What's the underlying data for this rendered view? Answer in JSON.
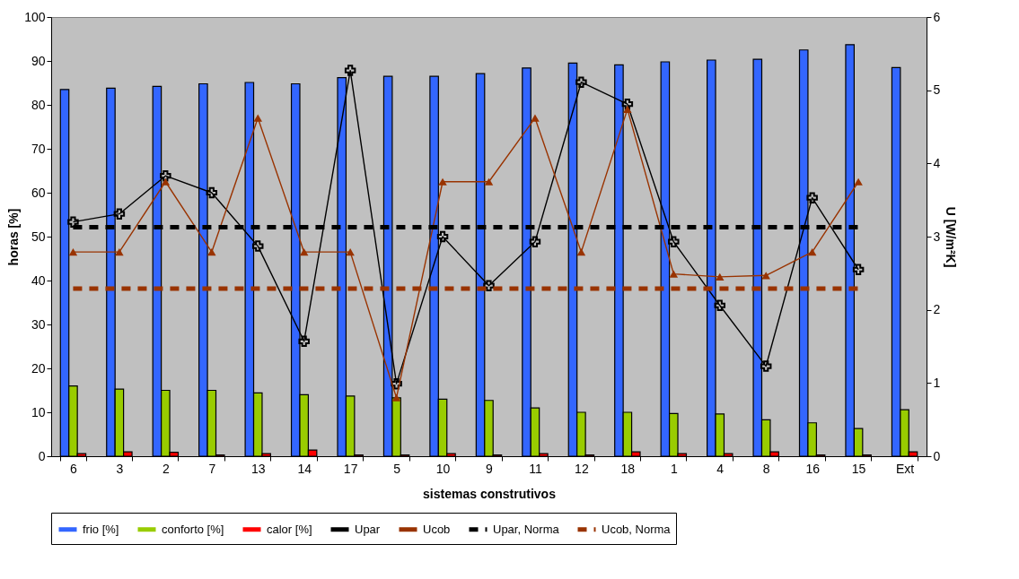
{
  "chart_data": {
    "type": "bar",
    "xlabel": "sistemas construtivos",
    "ylabel": "horas [%]",
    "y2label": "U [W/m²K]",
    "categories": [
      "6",
      "3",
      "2",
      "7",
      "13",
      "14",
      "17",
      "5",
      "10",
      "9",
      "11",
      "12",
      "18",
      "1",
      "4",
      "8",
      "16",
      "15",
      "Ext"
    ],
    "ylim": [
      0,
      100
    ],
    "yticks": [
      0,
      10,
      20,
      30,
      40,
      50,
      60,
      70,
      80,
      90,
      100
    ],
    "y2lim": [
      0,
      6
    ],
    "y2ticks": [
      0,
      1,
      2,
      3,
      4,
      5,
      6
    ],
    "grid": false,
    "legend": "bottom",
    "series": [
      {
        "name": "frio [%]",
        "color": "#3366ff",
        "values": [
          83.5,
          83.8,
          84.2,
          84.8,
          85.1,
          84.8,
          86.2,
          86.5,
          86.5,
          87.1,
          88.4,
          89.5,
          89.1,
          89.8,
          90.2,
          90.4,
          92.5,
          93.7,
          88.5
        ]
      },
      {
        "name": "conforto [%]",
        "color": "#99cc00",
        "values": [
          16,
          15.3,
          15,
          15,
          14.4,
          14,
          13.7,
          13.3,
          13,
          12.7,
          11,
          10,
          10,
          9.7,
          9.6,
          8.3,
          7.6,
          6.3,
          10.6
        ]
      },
      {
        "name": "calor [%]",
        "color": "#ff0000",
        "values": [
          0.6,
          1,
          0.9,
          0.3,
          0.6,
          1.4,
          0.3,
          0.3,
          0.6,
          0.3,
          0.6,
          0.3,
          1,
          0.6,
          0.6,
          1,
          0.3,
          0.3,
          1
        ]
      },
      {
        "name": "Upar",
        "type": "line",
        "axis": "y2",
        "color": "#000000",
        "marker": "cross",
        "line_style": "solid",
        "values": [
          3.2,
          3.31,
          3.83,
          3.6,
          2.87,
          1.57,
          5.27,
          0.99,
          3.0,
          2.33,
          2.93,
          5.11,
          4.81,
          2.93,
          2.06,
          1.23,
          3.53,
          2.55,
          null
        ]
      },
      {
        "name": "Ucob",
        "type": "line",
        "axis": "y2",
        "color": "#993300",
        "marker": "triangle",
        "line_style": "solid",
        "values": [
          2.79,
          2.79,
          3.75,
          2.79,
          4.62,
          2.79,
          2.79,
          0.8,
          3.75,
          3.75,
          4.62,
          2.79,
          4.74,
          2.49,
          2.45,
          2.47,
          2.79,
          3.75,
          null
        ]
      },
      {
        "name": "Upar, Norma",
        "type": "line",
        "axis": "y2",
        "color": "#000000",
        "marker": "none",
        "line_style": "dashed",
        "values": [
          3.13,
          3.13,
          3.13,
          3.13,
          3.13,
          3.13,
          3.13,
          3.13,
          3.13,
          3.13,
          3.13,
          3.13,
          3.13,
          3.13,
          3.13,
          3.13,
          3.13,
          3.13,
          null
        ]
      },
      {
        "name": "Ucob, Norma",
        "type": "line",
        "axis": "y2",
        "color": "#993300",
        "marker": "none",
        "line_style": "dashed",
        "values": [
          2.29,
          2.29,
          2.29,
          2.29,
          2.29,
          2.29,
          2.29,
          2.29,
          2.29,
          2.29,
          2.29,
          2.29,
          2.29,
          2.29,
          2.29,
          2.29,
          2.29,
          2.29,
          null
        ]
      }
    ]
  }
}
